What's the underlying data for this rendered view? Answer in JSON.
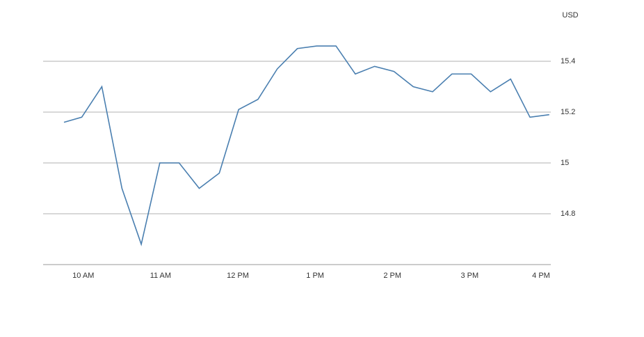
{
  "chart_data": {
    "type": "line",
    "y_label": "USD",
    "x": [
      9.75,
      9.98,
      10.24,
      10.5,
      10.75,
      10.99,
      11.24,
      11.5,
      11.76,
      12.01,
      12.26,
      12.51,
      12.77,
      13.02,
      13.27,
      13.52,
      13.77,
      14.02,
      14.27,
      14.52,
      14.77,
      15.02,
      15.27,
      15.53,
      15.78,
      16.03
    ],
    "series": [
      {
        "color": "#4a7fb0",
        "values": [
          15.16,
          15.18,
          15.3,
          14.9,
          14.68,
          15.0,
          15.0,
          14.9,
          14.96,
          15.21,
          15.25,
          15.37,
          15.45,
          15.46,
          15.46,
          15.35,
          15.38,
          15.36,
          15.3,
          15.28,
          15.35,
          15.35,
          15.28,
          15.33,
          15.18,
          15.19
        ]
      }
    ],
    "xlim": [
      9.48,
      16.05
    ],
    "xticks": [
      {
        "value": 10,
        "label": "10 AM"
      },
      {
        "value": 11,
        "label": "11 AM"
      },
      {
        "value": 12,
        "label": "12 PM"
      },
      {
        "value": 13,
        "label": "1 PM"
      },
      {
        "value": 14,
        "label": "2 PM"
      },
      {
        "value": 15,
        "label": "3 PM"
      },
      {
        "value": 16,
        "label": "4 PM"
      }
    ],
    "ylim": [
      14.6,
      15.6
    ],
    "yticks": [
      14.8,
      15.0,
      15.2,
      15.4
    ],
    "grid": true
  }
}
